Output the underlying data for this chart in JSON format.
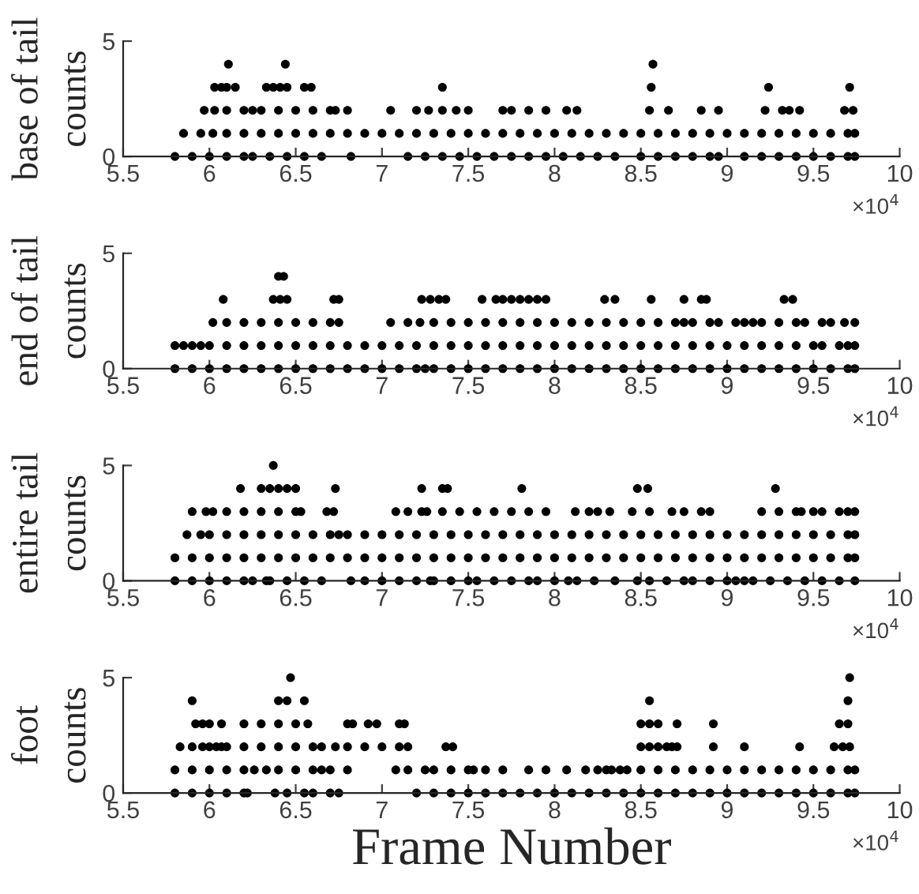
{
  "chart_data": [
    {
      "type": "scatter",
      "title": "base of tail",
      "ylabel": "counts",
      "annotations": [
        "×10$^{4}$"
      ],
      "marker": "circle",
      "xlim": [
        5.5,
        10
      ],
      "ylim": [
        0,
        5
      ],
      "yticks": [
        0,
        5
      ],
      "xticks": [
        5.5,
        6,
        6.5,
        7,
        7.5,
        8,
        8.5,
        9,
        9.5,
        10
      ],
      "series": [
        {
          "color": "#000000",
          "x": [
            5.8,
            5.9,
            6.0,
            6.1,
            6.2,
            6.25,
            6.35,
            6.45,
            6.55,
            6.65,
            6.82,
            7.15,
            7.25,
            7.35,
            7.45,
            7.55,
            7.65,
            7.75,
            7.85,
            7.95,
            8.05,
            8.15,
            8.25,
            8.35,
            8.5,
            8.6,
            8.7,
            8.8,
            8.9,
            8.95,
            9.1,
            9.2,
            9.3,
            9.4,
            9.5,
            9.6,
            9.7,
            9.74
          ],
          "values": [
            0,
            0,
            0,
            0,
            0,
            0,
            0,
            0,
            0,
            0,
            0,
            0,
            0,
            0,
            0,
            0,
            0,
            0,
            0,
            0,
            0,
            0,
            0,
            0,
            0,
            0,
            0,
            0,
            0,
            0,
            0,
            0,
            0,
            0,
            0,
            0,
            0,
            0
          ]
        },
        {
          "color": "#000000",
          "x": [
            5.85,
            5.95,
            6.02,
            6.1,
            6.2,
            6.3,
            6.4,
            6.5,
            6.6,
            6.7,
            6.8,
            6.9,
            7.0,
            7.1,
            7.2,
            7.3,
            7.4,
            7.5,
            7.6,
            7.7,
            7.8,
            7.9,
            8.0,
            8.1,
            8.2,
            8.3,
            8.4,
            8.5,
            8.6,
            8.7,
            8.8,
            8.9,
            9.0,
            9.1,
            9.2,
            9.3,
            9.4,
            9.5,
            9.6,
            9.7,
            9.74
          ],
          "values": [
            1,
            1,
            1,
            1,
            1,
            1,
            1,
            1,
            1,
            1,
            1,
            1,
            1,
            1,
            1,
            1,
            1,
            1,
            1,
            1,
            1,
            1,
            1,
            1,
            1,
            1,
            1,
            1,
            1,
            1,
            1,
            1,
            1,
            1,
            1,
            1,
            1,
            1,
            1,
            1,
            1
          ]
        },
        {
          "color": "#000000",
          "x": [
            5.97,
            6.03,
            6.1,
            6.2,
            6.25,
            6.3,
            6.4,
            6.5,
            6.6,
            6.7,
            6.73,
            6.8,
            7.05,
            7.2,
            7.27,
            7.35,
            7.43,
            7.5,
            7.7,
            7.75,
            7.85,
            7.95,
            8.07,
            8.13,
            8.55,
            8.66,
            8.85,
            8.95,
            9.22,
            9.32,
            9.36,
            9.42,
            9.68,
            9.73
          ],
          "values": [
            2,
            2,
            2,
            2,
            2,
            2,
            2,
            2,
            2,
            2,
            2,
            2,
            2,
            2,
            2,
            2,
            2,
            2,
            2,
            2,
            2,
            2,
            2,
            2,
            2,
            2,
            2,
            2,
            2,
            2,
            2,
            2,
            2,
            2
          ]
        },
        {
          "color": "#000000",
          "x": [
            6.03,
            6.07,
            6.1,
            6.15,
            6.33,
            6.37,
            6.41,
            6.45,
            6.55,
            6.59,
            7.35,
            8.56,
            9.24,
            9.71
          ],
          "values": [
            3,
            3,
            3,
            3,
            3,
            3,
            3,
            3,
            3,
            3,
            3,
            3,
            3,
            3
          ]
        },
        {
          "color": "#000000",
          "x": [
            6.11,
            6.44,
            8.57
          ],
          "values": [
            4,
            4,
            4
          ]
        }
      ]
    },
    {
      "type": "scatter",
      "title": "end of tail",
      "ylabel": "counts",
      "annotations": [
        "×10$^{4}$"
      ],
      "marker": "circle",
      "xlim": [
        5.5,
        10
      ],
      "ylim": [
        0,
        5
      ],
      "yticks": [
        0,
        5
      ],
      "xticks": [
        5.5,
        6,
        6.5,
        7,
        7.5,
        8,
        8.5,
        9,
        9.5,
        10
      ],
      "series": [
        {
          "color": "#000000",
          "x": [
            5.8,
            5.9,
            6.0,
            6.1,
            6.2,
            6.3,
            6.4,
            6.5,
            6.6,
            6.7,
            6.8,
            6.9,
            7.0,
            7.1,
            7.2,
            7.25,
            7.3,
            7.4,
            7.5,
            7.6,
            7.7,
            7.8,
            7.9,
            8.0,
            8.1,
            8.2,
            8.3,
            8.4,
            8.5,
            8.6,
            8.7,
            8.8,
            8.9,
            9.0,
            9.1,
            9.2,
            9.3,
            9.4,
            9.5,
            9.6,
            9.7,
            9.74
          ],
          "values": [
            0,
            0,
            0,
            0,
            0,
            0,
            0,
            0,
            0,
            0,
            0,
            0,
            0,
            0,
            0,
            0,
            0,
            0,
            0,
            0,
            0,
            0,
            0,
            0,
            0,
            0,
            0,
            0,
            0,
            0,
            0,
            0,
            0,
            0,
            0,
            0,
            0,
            0,
            0,
            0,
            0,
            0
          ]
        },
        {
          "color": "#000000",
          "x": [
            5.8,
            5.85,
            5.9,
            5.95,
            6.0,
            6.1,
            6.2,
            6.3,
            6.4,
            6.5,
            6.6,
            6.7,
            6.8,
            6.9,
            7.0,
            7.1,
            7.2,
            7.3,
            7.4,
            7.5,
            7.6,
            7.7,
            7.8,
            7.9,
            8.0,
            8.1,
            8.2,
            8.3,
            8.4,
            8.5,
            8.6,
            8.7,
            8.8,
            8.9,
            9.0,
            9.1,
            9.2,
            9.3,
            9.4,
            9.5,
            9.55,
            9.65,
            9.7,
            9.74
          ],
          "values": [
            1,
            1,
            1,
            1,
            1,
            1,
            1,
            1,
            1,
            1,
            1,
            1,
            1,
            1,
            1,
            1,
            1,
            1,
            1,
            1,
            1,
            1,
            1,
            1,
            1,
            1,
            1,
            1,
            1,
            1,
            1,
            1,
            1,
            1,
            1,
            1,
            1,
            1,
            1,
            1,
            1,
            1,
            1,
            1
          ]
        },
        {
          "color": "#000000",
          "x": [
            6.02,
            6.1,
            6.2,
            6.3,
            6.4,
            6.5,
            6.6,
            6.7,
            6.75,
            7.05,
            7.15,
            7.22,
            7.3,
            7.4,
            7.5,
            7.6,
            7.7,
            7.8,
            7.9,
            8.0,
            8.1,
            8.2,
            8.3,
            8.4,
            8.5,
            8.6,
            8.7,
            8.75,
            8.8,
            8.9,
            8.95,
            9.05,
            9.1,
            9.15,
            9.2,
            9.3,
            9.4,
            9.45,
            9.55,
            9.6,
            9.68,
            9.74
          ],
          "values": [
            2,
            2,
            2,
            2,
            2,
            2,
            2,
            2,
            2,
            2,
            2,
            2,
            2,
            2,
            2,
            2,
            2,
            2,
            2,
            2,
            2,
            2,
            2,
            2,
            2,
            2,
            2,
            2,
            2,
            2,
            2,
            2,
            2,
            2,
            2,
            2,
            2,
            2,
            2,
            2,
            2,
            2
          ]
        },
        {
          "color": "#000000",
          "x": [
            6.08,
            6.37,
            6.41,
            6.45,
            6.72,
            6.75,
            7.23,
            7.28,
            7.33,
            7.37,
            7.58,
            7.66,
            7.7,
            7.75,
            7.8,
            7.85,
            7.9,
            7.95,
            8.29,
            8.35,
            8.56,
            8.75,
            8.85,
            8.88,
            9.33,
            9.38
          ],
          "values": [
            3,
            3,
            3,
            3,
            3,
            3,
            3,
            3,
            3,
            3,
            3,
            3,
            3,
            3,
            3,
            3,
            3,
            3,
            3,
            3,
            3,
            3,
            3,
            3,
            3,
            3
          ]
        },
        {
          "color": "#000000",
          "x": [
            6.4,
            6.43
          ],
          "values": [
            4,
            4
          ]
        }
      ]
    },
    {
      "type": "scatter",
      "title": "entire tail",
      "ylabel": "counts",
      "annotations": [
        "×10$^{4}$"
      ],
      "marker": "circle",
      "xlim": [
        5.5,
        10
      ],
      "ylim": [
        0,
        5
      ],
      "yticks": [
        0,
        5
      ],
      "xticks": [
        5.5,
        6,
        6.5,
        7,
        7.5,
        8,
        8.5,
        9,
        9.5,
        10
      ],
      "series": [
        {
          "color": "#000000",
          "x": [
            5.8,
            5.9,
            6.0,
            6.1,
            6.2,
            6.25,
            6.33,
            6.35,
            6.45,
            6.55,
            6.65,
            6.82,
            6.9,
            7.0,
            7.1,
            7.2,
            7.28,
            7.3,
            7.4,
            7.5,
            7.55,
            7.65,
            7.75,
            7.85,
            7.9,
            8.0,
            8.08,
            8.13,
            8.23,
            8.35,
            8.48,
            8.55,
            8.65,
            8.75,
            8.8,
            8.9,
            9.0,
            9.05,
            9.1,
            9.15,
            9.25,
            9.35,
            9.45,
            9.55,
            9.65,
            9.74
          ],
          "values": [
            0,
            0,
            0,
            0,
            0,
            0,
            0,
            0,
            0,
            0,
            0,
            0,
            0,
            0,
            0,
            0,
            0,
            0,
            0,
            0,
            0,
            0,
            0,
            0,
            0,
            0,
            0,
            0,
            0,
            0,
            0,
            0,
            0,
            0,
            0,
            0,
            0,
            0,
            0,
            0,
            0,
            0,
            0,
            0,
            0,
            0
          ]
        },
        {
          "color": "#000000",
          "x": [
            5.8,
            5.9,
            6.0,
            6.1,
            6.2,
            6.3,
            6.4,
            6.5,
            6.6,
            6.7,
            6.8,
            6.9,
            7.0,
            7.1,
            7.2,
            7.3,
            7.4,
            7.5,
            7.6,
            7.7,
            7.8,
            7.9,
            8.0,
            8.1,
            8.2,
            8.3,
            8.4,
            8.5,
            8.6,
            8.7,
            8.8,
            8.9,
            9.0,
            9.1,
            9.2,
            9.3,
            9.4,
            9.5,
            9.6,
            9.7,
            9.74
          ],
          "values": [
            1,
            1,
            1,
            1,
            1,
            1,
            1,
            1,
            1,
            1,
            1,
            1,
            1,
            1,
            1,
            1,
            1,
            1,
            1,
            1,
            1,
            1,
            1,
            1,
            1,
            1,
            1,
            1,
            1,
            1,
            1,
            1,
            1,
            1,
            1,
            1,
            1,
            1,
            1,
            1,
            1
          ]
        },
        {
          "color": "#000000",
          "x": [
            5.87,
            5.95,
            6.0,
            6.1,
            6.2,
            6.3,
            6.4,
            6.5,
            6.6,
            6.7,
            6.75,
            6.8,
            6.9,
            7.0,
            7.1,
            7.2,
            7.3,
            7.4,
            7.5,
            7.6,
            7.7,
            7.8,
            7.9,
            8.0,
            8.1,
            8.2,
            8.3,
            8.4,
            8.5,
            8.6,
            8.7,
            8.8,
            8.9,
            9.0,
            9.1,
            9.2,
            9.3,
            9.4,
            9.5,
            9.6,
            9.7,
            9.74
          ],
          "values": [
            2,
            2,
            2,
            2,
            2,
            2,
            2,
            2,
            2,
            2,
            2,
            2,
            2,
            2,
            2,
            2,
            2,
            2,
            2,
            2,
            2,
            2,
            2,
            2,
            2,
            2,
            2,
            2,
            2,
            2,
            2,
            2,
            2,
            2,
            2,
            2,
            2,
            2,
            2,
            2,
            2,
            2
          ]
        },
        {
          "color": "#000000",
          "x": [
            5.9,
            5.98,
            6.02,
            6.1,
            6.2,
            6.3,
            6.4,
            6.5,
            6.53,
            6.68,
            6.72,
            7.08,
            7.15,
            7.23,
            7.26,
            7.35,
            7.45,
            7.55,
            7.65,
            7.75,
            7.85,
            7.95,
            8.12,
            8.2,
            8.25,
            8.32,
            8.45,
            8.55,
            8.68,
            8.75,
            8.85,
            8.9,
            9.2,
            9.3,
            9.4,
            9.43,
            9.5,
            9.55,
            9.65,
            9.7,
            9.74
          ],
          "values": [
            3,
            3,
            3,
            3,
            3,
            3,
            3,
            3,
            3,
            3,
            3,
            3,
            3,
            3,
            3,
            3,
            3,
            3,
            3,
            3,
            3,
            3,
            3,
            3,
            3,
            3,
            3,
            3,
            3,
            3,
            3,
            3,
            3,
            3,
            3,
            3,
            3,
            3,
            3,
            3,
            3
          ]
        },
        {
          "color": "#000000",
          "x": [
            6.18,
            6.3,
            6.35,
            6.4,
            6.45,
            6.5,
            6.73,
            7.23,
            7.35,
            7.38,
            7.81,
            8.48,
            8.54,
            9.28
          ],
          "values": [
            4,
            4,
            4,
            4,
            4,
            4,
            4,
            4,
            4,
            4,
            4,
            4,
            4,
            4
          ]
        },
        {
          "color": "#000000",
          "x": [
            6.37
          ],
          "values": [
            5
          ]
        }
      ]
    },
    {
      "type": "scatter",
      "title": "foot",
      "ylabel": "counts",
      "xlabel": "Frame Number",
      "annotations": [
        "×10$^{4}$"
      ],
      "marker": "circle",
      "xlim": [
        5.5,
        10
      ],
      "ylim": [
        0,
        5
      ],
      "yticks": [
        0,
        5
      ],
      "xticks": [
        5.5,
        6,
        6.5,
        7,
        7.5,
        8,
        8.5,
        9,
        9.5,
        10
      ],
      "series": [
        {
          "color": "#000000",
          "x": [
            5.8,
            5.9,
            6.0,
            6.1,
            6.2,
            6.22,
            6.38,
            6.45,
            6.55,
            6.6,
            6.7,
            6.75,
            7.2,
            7.3,
            7.4,
            7.5,
            7.6,
            7.7,
            7.8,
            7.9,
            8.0,
            8.1,
            8.2,
            8.3,
            8.4,
            8.5,
            8.6,
            8.7,
            8.8,
            8.9,
            9.0,
            9.1,
            9.2,
            9.3,
            9.4,
            9.5,
            9.6,
            9.7,
            9.74
          ],
          "values": [
            0,
            0,
            0,
            0,
            0,
            0,
            0,
            0,
            0,
            0,
            0,
            0,
            0,
            0,
            0,
            0,
            0,
            0,
            0,
            0,
            0,
            0,
            0,
            0,
            0,
            0,
            0,
            0,
            0,
            0,
            0,
            0,
            0,
            0,
            0,
            0,
            0,
            0,
            0
          ]
        },
        {
          "color": "#000000",
          "x": [
            5.8,
            5.9,
            6.0,
            6.1,
            6.2,
            6.26,
            6.33,
            6.4,
            6.5,
            6.6,
            6.65,
            6.7,
            6.8,
            7.08,
            7.15,
            7.25,
            7.3,
            7.4,
            7.5,
            7.53,
            7.6,
            7.7,
            7.85,
            7.95,
            8.07,
            8.18,
            8.25,
            8.3,
            8.33,
            8.38,
            8.42,
            8.5,
            8.6,
            8.7,
            8.8,
            8.9,
            9.0,
            9.1,
            9.2,
            9.3,
            9.4,
            9.5,
            9.6,
            9.7,
            9.74
          ],
          "values": [
            1,
            1,
            1,
            1,
            1,
            1,
            1,
            1,
            1,
            1,
            1,
            1,
            1,
            1,
            1,
            1,
            1,
            1,
            1,
            1,
            1,
            1,
            1,
            1,
            1,
            1,
            1,
            1,
            1,
            1,
            1,
            1,
            1,
            1,
            1,
            1,
            1,
            1,
            1,
            1,
            1,
            1,
            1,
            1,
            1
          ]
        },
        {
          "color": "#000000",
          "x": [
            5.83,
            5.9,
            5.96,
            6.0,
            6.04,
            6.07,
            6.1,
            6.2,
            6.3,
            6.4,
            6.5,
            6.6,
            6.65,
            6.73,
            6.8,
            6.9,
            7.0,
            7.1,
            7.15,
            7.37,
            7.41,
            8.5,
            8.55,
            8.6,
            8.65,
            8.68,
            8.71,
            8.92,
            9.1,
            9.42,
            9.62,
            9.67,
            9.71
          ],
          "values": [
            2,
            2,
            2,
            2,
            2,
            2,
            2,
            2,
            2,
            2,
            2,
            2,
            2,
            2,
            2,
            2,
            2,
            2,
            2,
            2,
            2,
            2,
            2,
            2,
            2,
            2,
            2,
            2,
            2,
            2,
            2,
            2,
            2
          ]
        },
        {
          "color": "#000000",
          "x": [
            5.92,
            5.96,
            6.0,
            6.07,
            6.2,
            6.3,
            6.4,
            6.5,
            6.57,
            6.8,
            6.83,
            6.92,
            6.97,
            7.1,
            7.13,
            8.5,
            8.55,
            8.6,
            8.71,
            8.92,
            9.65,
            9.7
          ],
          "values": [
            3,
            3,
            3,
            3,
            3,
            3,
            3,
            3,
            3,
            3,
            3,
            3,
            3,
            3,
            3,
            3,
            3,
            3,
            3,
            3,
            3,
            3
          ]
        },
        {
          "color": "#000000",
          "x": [
            5.9,
            6.4,
            6.45,
            6.55,
            8.55,
            9.7
          ],
          "values": [
            4,
            4,
            4,
            4,
            4,
            4
          ]
        },
        {
          "color": "#000000",
          "x": [
            6.47,
            9.71
          ],
          "values": [
            5,
            5
          ]
        }
      ]
    }
  ]
}
